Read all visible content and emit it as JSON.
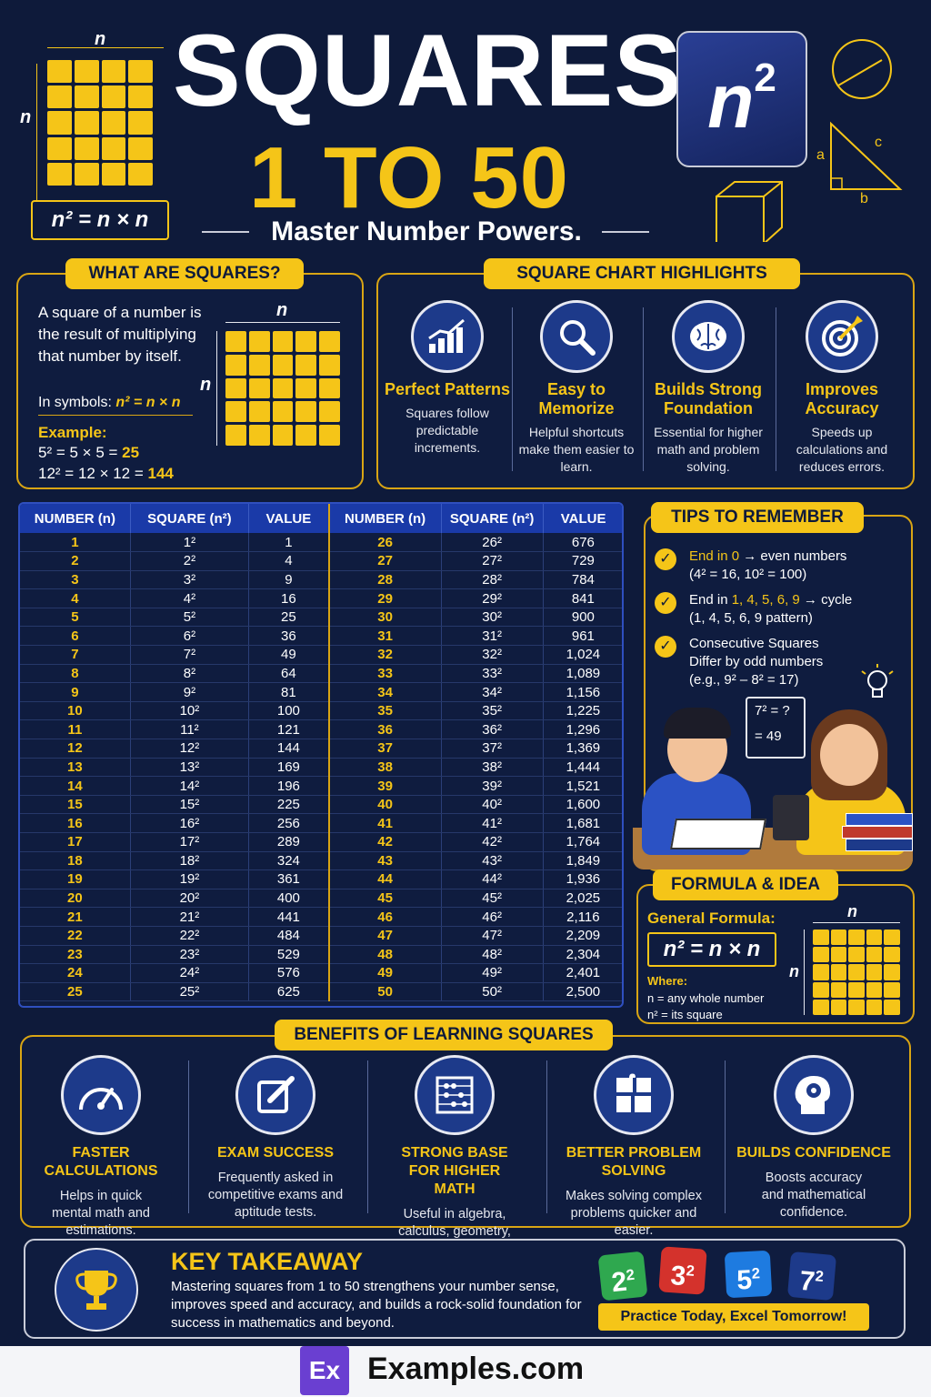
{
  "header": {
    "title_line1": "SQUARES",
    "title_line2": "1 TO 50",
    "subtitle": "Master Number Powers.",
    "formula_box": "n² = n × n",
    "grid_label": "n",
    "n_badge": "n",
    "tri_a": "a",
    "tri_b": "b",
    "tri_c": "c"
  },
  "what": {
    "heading": "WHAT ARE SQUARES?",
    "text": "A square of a number is the result of multiplying that number by itself.",
    "symbols_prefix": "In symbols: ",
    "symbols_formula": "n² = n × n",
    "example_label": "Example:",
    "ex1": "5² = 5 × 5 = ",
    "ex1_result": "25",
    "ex2": "12² = 12 × 12 = ",
    "ex2_result": "144",
    "grid_label": "n"
  },
  "highlights": {
    "heading": "SQUARE CHART HIGHLIGHTS",
    "items": [
      {
        "title": "Perfect Patterns",
        "desc": "Squares follow predictable increments.",
        "icon": "bar-chart-icon"
      },
      {
        "title": "Easy to Memorize",
        "desc": "Helpful shortcuts make them easier to learn.",
        "icon": "magnifier-icon"
      },
      {
        "title": "Builds Strong Foundation",
        "desc": "Essential for higher math and problem solving.",
        "icon": "brain-icon"
      },
      {
        "title": "Improves Accuracy",
        "desc": "Speeds up calculations and reduces errors.",
        "icon": "target-icon"
      }
    ]
  },
  "table": {
    "headers": [
      "NUMBER (n)",
      "SQUARE (n²)",
      "VALUE",
      "NUMBER (n)",
      "SQUARE (n²)",
      "VALUE"
    ],
    "left": [
      [
        "1",
        "1²",
        "1"
      ],
      [
        "2",
        "2²",
        "4"
      ],
      [
        "3",
        "3²",
        "9"
      ],
      [
        "4",
        "4²",
        "16"
      ],
      [
        "5",
        "5²",
        "25"
      ],
      [
        "6",
        "6²",
        "36"
      ],
      [
        "7",
        "7²",
        "49"
      ],
      [
        "8",
        "8²",
        "64"
      ],
      [
        "9",
        "9²",
        "81"
      ],
      [
        "10",
        "10²",
        "100"
      ],
      [
        "11",
        "11²",
        "121"
      ],
      [
        "12",
        "12²",
        "144"
      ],
      [
        "13",
        "13²",
        "169"
      ],
      [
        "14",
        "14²",
        "196"
      ],
      [
        "15",
        "15²",
        "225"
      ],
      [
        "16",
        "16²",
        "256"
      ],
      [
        "17",
        "17²",
        "289"
      ],
      [
        "18",
        "18²",
        "324"
      ],
      [
        "19",
        "19²",
        "361"
      ],
      [
        "20",
        "20²",
        "400"
      ],
      [
        "21",
        "21²",
        "441"
      ],
      [
        "22",
        "22²",
        "484"
      ],
      [
        "23",
        "23²",
        "529"
      ],
      [
        "24",
        "24²",
        "576"
      ],
      [
        "25",
        "25²",
        "625"
      ]
    ],
    "right": [
      [
        "26",
        "26²",
        "676"
      ],
      [
        "27",
        "27²",
        "729"
      ],
      [
        "28",
        "28²",
        "784"
      ],
      [
        "29",
        "29²",
        "841"
      ],
      [
        "30",
        "30²",
        "900"
      ],
      [
        "31",
        "31²",
        "961"
      ],
      [
        "32",
        "32²",
        "1,024"
      ],
      [
        "33",
        "33²",
        "1,089"
      ],
      [
        "34",
        "34²",
        "1,156"
      ],
      [
        "35",
        "35²",
        "1,225"
      ],
      [
        "36",
        "36²",
        "1,296"
      ],
      [
        "37",
        "37²",
        "1,369"
      ],
      [
        "38",
        "38²",
        "1,444"
      ],
      [
        "39",
        "39²",
        "1,521"
      ],
      [
        "40",
        "40²",
        "1,600"
      ],
      [
        "41",
        "41²",
        "1,681"
      ],
      [
        "42",
        "42²",
        "1,764"
      ],
      [
        "43",
        "43²",
        "1,849"
      ],
      [
        "44",
        "44²",
        "1,936"
      ],
      [
        "45",
        "45²",
        "2,025"
      ],
      [
        "46",
        "46²",
        "2,116"
      ],
      [
        "47",
        "47²",
        "2,209"
      ],
      [
        "48",
        "48²",
        "2,304"
      ],
      [
        "49",
        "49²",
        "2,401"
      ],
      [
        "50",
        "50²",
        "2,500"
      ]
    ]
  },
  "tips": {
    "heading": "TIPS TO REMEMBER",
    "t1_a": "End in 0",
    "t1_b": " → even numbers",
    "t1_c": "(4² = 16, 10² = 100)",
    "t2_a": "End in ",
    "t2_b": "1, 4, 5, 6, 9",
    "t2_c": " → cycle",
    "t2_d": "(1, 4, 5, 6, 9 pattern)",
    "t3_a": "Consecutive Squares",
    "t3_b": "Differ by odd numbers",
    "t3_c": "(e.g., 9² – 8² = 17)",
    "board_1": "7² = ?",
    "board_2": "= 49"
  },
  "formula": {
    "heading": "FORMULA & IDEA",
    "general_label": "General Formula:",
    "formula": "n² = n × n",
    "where_label": "Where:",
    "where_1": "n = any whole number",
    "where_2": "n² = its square",
    "grid_label": "n"
  },
  "benefits": {
    "heading": "BENEFITS OF LEARNING SQUARES",
    "items": [
      {
        "title": "FASTER CALCULATIONS",
        "desc": "Helps in quick mental math and estimations.",
        "icon": "speedometer-icon"
      },
      {
        "title": "EXAM SUCCESS",
        "desc": "Frequently asked in competitive exams and aptitude tests.",
        "icon": "pencil-note-icon"
      },
      {
        "title": "STRONG BASE FOR HIGHER MATH",
        "desc": "Useful in algebra, calculus, geometry, and statistics.",
        "icon": "abacus-icon"
      },
      {
        "title": "BETTER PROBLEM SOLVING",
        "desc": "Makes solving complex problems quicker and easier.",
        "icon": "puzzle-icon"
      },
      {
        "title": "BUILDS CONFIDENCE",
        "desc": "Boosts accuracy and mathematical confidence.",
        "icon": "head-gear-icon"
      }
    ]
  },
  "takeaway": {
    "heading": "KEY TAKEAWAY",
    "text": "Mastering squares from 1 to 50 strengthens your number sense, improves speed and accuracy, and builds a rock-solid foundation for success in mathematics and beyond.",
    "tiles": [
      "2",
      "3",
      "5",
      "7"
    ],
    "banner": "Practice Today, Excel Tomorrow!"
  },
  "footer": {
    "logo": "Ex",
    "site": "Examples.com"
  },
  "colors": {
    "background": "#0e1a3a",
    "accent": "#f5c518",
    "table_header": "#1a3aa8"
  }
}
